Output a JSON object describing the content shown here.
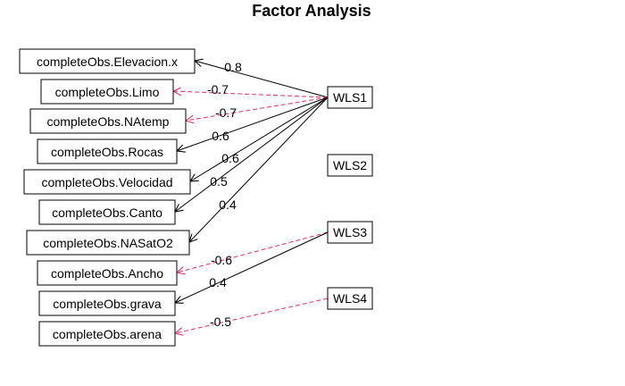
{
  "title": "Factor Analysis",
  "colors": {
    "positive": "#000000",
    "negative": "#d6336c"
  },
  "variables": [
    {
      "id": "elevacion",
      "label": "completeObs.Elevacion.x"
    },
    {
      "id": "limo",
      "label": "completeObs.Limo"
    },
    {
      "id": "natemp",
      "label": "completeObs.NAtemp"
    },
    {
      "id": "rocas",
      "label": "completeObs.Rocas"
    },
    {
      "id": "velocidad",
      "label": "completeObs.Velocidad"
    },
    {
      "id": "canto",
      "label": "completeObs.Canto"
    },
    {
      "id": "nasato2",
      "label": "completeObs.NASatO2"
    },
    {
      "id": "ancho",
      "label": "completeObs.Ancho"
    },
    {
      "id": "grava",
      "label": "completeObs.grava"
    },
    {
      "id": "arena",
      "label": "completeObs.arena"
    }
  ],
  "factors": [
    {
      "id": "wls1",
      "label": "WLS1"
    },
    {
      "id": "wls2",
      "label": "WLS2"
    },
    {
      "id": "wls3",
      "label": "WLS3"
    },
    {
      "id": "wls4",
      "label": "WLS4"
    }
  ],
  "loadings": [
    {
      "from": "wls1",
      "to": "elevacion",
      "label": "0.8",
      "sign": "positive"
    },
    {
      "from": "wls1",
      "to": "limo",
      "label": "-0.7",
      "sign": "negative"
    },
    {
      "from": "wls1",
      "to": "natemp",
      "label": "-0.7",
      "sign": "negative"
    },
    {
      "from": "wls1",
      "to": "rocas",
      "label": "0.6",
      "sign": "positive"
    },
    {
      "from": "wls1",
      "to": "velocidad",
      "label": "0.6",
      "sign": "positive"
    },
    {
      "from": "wls1",
      "to": "canto",
      "label": "0.5",
      "sign": "positive"
    },
    {
      "from": "wls1",
      "to": "nasato2",
      "label": "0.4",
      "sign": "positive"
    },
    {
      "from": "wls3",
      "to": "ancho",
      "label": "-0.6",
      "sign": "negative"
    },
    {
      "from": "wls3",
      "to": "grava",
      "label": "0.4",
      "sign": "positive"
    },
    {
      "from": "wls4",
      "to": "arena",
      "label": "-0.5",
      "sign": "negative"
    }
  ]
}
